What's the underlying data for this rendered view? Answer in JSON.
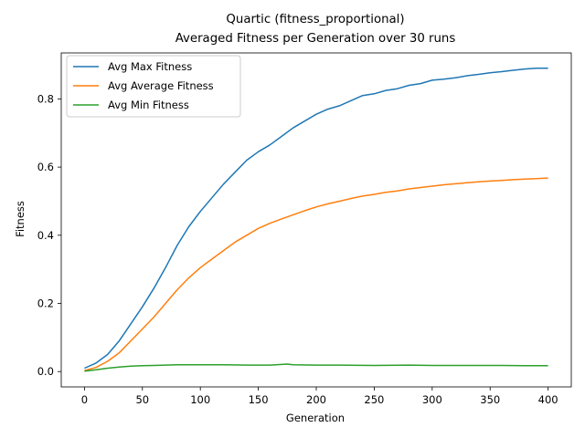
{
  "chart_data": {
    "type": "line",
    "title_line1": "Quartic (fitness_proportional)",
    "title_line2": "Averaged Fitness per Generation over 30 runs",
    "xlabel": "Generation",
    "ylabel": "Fitness",
    "xlim": [
      -20,
      420
    ],
    "ylim": [
      -0.045,
      0.935
    ],
    "xticks": [
      0,
      50,
      100,
      150,
      200,
      250,
      300,
      350,
      400
    ],
    "yticks": [
      0.0,
      0.2,
      0.4,
      0.6,
      0.8
    ],
    "ytick_labels": [
      "0.0",
      "0.2",
      "0.4",
      "0.6",
      "0.8"
    ],
    "legend_position": "upper-left",
    "grid": false,
    "series": [
      {
        "name": "Avg Max Fitness",
        "color": "#1f77b4",
        "points": [
          [
            0,
            0.01
          ],
          [
            10,
            0.025
          ],
          [
            20,
            0.05
          ],
          [
            30,
            0.09
          ],
          [
            40,
            0.14
          ],
          [
            50,
            0.19
          ],
          [
            60,
            0.245
          ],
          [
            70,
            0.305
          ],
          [
            80,
            0.37
          ],
          [
            90,
            0.425
          ],
          [
            100,
            0.47
          ],
          [
            110,
            0.51
          ],
          [
            120,
            0.55
          ],
          [
            130,
            0.585
          ],
          [
            140,
            0.62
          ],
          [
            150,
            0.645
          ],
          [
            160,
            0.665
          ],
          [
            170,
            0.69
          ],
          [
            180,
            0.715
          ],
          [
            190,
            0.735
          ],
          [
            200,
            0.755
          ],
          [
            210,
            0.77
          ],
          [
            220,
            0.78
          ],
          [
            230,
            0.795
          ],
          [
            240,
            0.81
          ],
          [
            250,
            0.815
          ],
          [
            260,
            0.825
          ],
          [
            270,
            0.83
          ],
          [
            280,
            0.84
          ],
          [
            290,
            0.845
          ],
          [
            300,
            0.855
          ],
          [
            310,
            0.858
          ],
          [
            320,
            0.862
          ],
          [
            330,
            0.868
          ],
          [
            340,
            0.872
          ],
          [
            350,
            0.877
          ],
          [
            360,
            0.88
          ],
          [
            370,
            0.884
          ],
          [
            380,
            0.888
          ],
          [
            390,
            0.89
          ],
          [
            400,
            0.89
          ]
        ]
      },
      {
        "name": "Avg Average Fitness",
        "color": "#ff7f0e",
        "points": [
          [
            0,
            0.003
          ],
          [
            10,
            0.012
          ],
          [
            20,
            0.03
          ],
          [
            30,
            0.055
          ],
          [
            40,
            0.09
          ],
          [
            50,
            0.125
          ],
          [
            60,
            0.16
          ],
          [
            70,
            0.2
          ],
          [
            80,
            0.24
          ],
          [
            90,
            0.275
          ],
          [
            100,
            0.305
          ],
          [
            110,
            0.33
          ],
          [
            120,
            0.355
          ],
          [
            130,
            0.38
          ],
          [
            140,
            0.4
          ],
          [
            150,
            0.42
          ],
          [
            160,
            0.435
          ],
          [
            170,
            0.448
          ],
          [
            180,
            0.46
          ],
          [
            190,
            0.472
          ],
          [
            200,
            0.483
          ],
          [
            210,
            0.492
          ],
          [
            220,
            0.5
          ],
          [
            230,
            0.508
          ],
          [
            240,
            0.515
          ],
          [
            250,
            0.52
          ],
          [
            260,
            0.526
          ],
          [
            270,
            0.53
          ],
          [
            280,
            0.536
          ],
          [
            290,
            0.54
          ],
          [
            300,
            0.544
          ],
          [
            310,
            0.548
          ],
          [
            320,
            0.551
          ],
          [
            330,
            0.554
          ],
          [
            340,
            0.557
          ],
          [
            350,
            0.559
          ],
          [
            360,
            0.561
          ],
          [
            370,
            0.563
          ],
          [
            380,
            0.565
          ],
          [
            390,
            0.566
          ],
          [
            400,
            0.568
          ]
        ]
      },
      {
        "name": "Avg Min Fitness",
        "color": "#2ca02c",
        "points": [
          [
            0,
            0.001
          ],
          [
            10,
            0.005
          ],
          [
            20,
            0.01
          ],
          [
            30,
            0.013
          ],
          [
            40,
            0.016
          ],
          [
            50,
            0.017
          ],
          [
            60,
            0.018
          ],
          [
            70,
            0.019
          ],
          [
            80,
            0.02
          ],
          [
            90,
            0.02
          ],
          [
            100,
            0.02
          ],
          [
            120,
            0.02
          ],
          [
            140,
            0.019
          ],
          [
            160,
            0.019
          ],
          [
            175,
            0.022
          ],
          [
            180,
            0.02
          ],
          [
            200,
            0.019
          ],
          [
            220,
            0.019
          ],
          [
            250,
            0.018
          ],
          [
            280,
            0.019
          ],
          [
            300,
            0.018
          ],
          [
            330,
            0.018
          ],
          [
            360,
            0.018
          ],
          [
            380,
            0.017
          ],
          [
            400,
            0.017
          ]
        ]
      }
    ]
  }
}
